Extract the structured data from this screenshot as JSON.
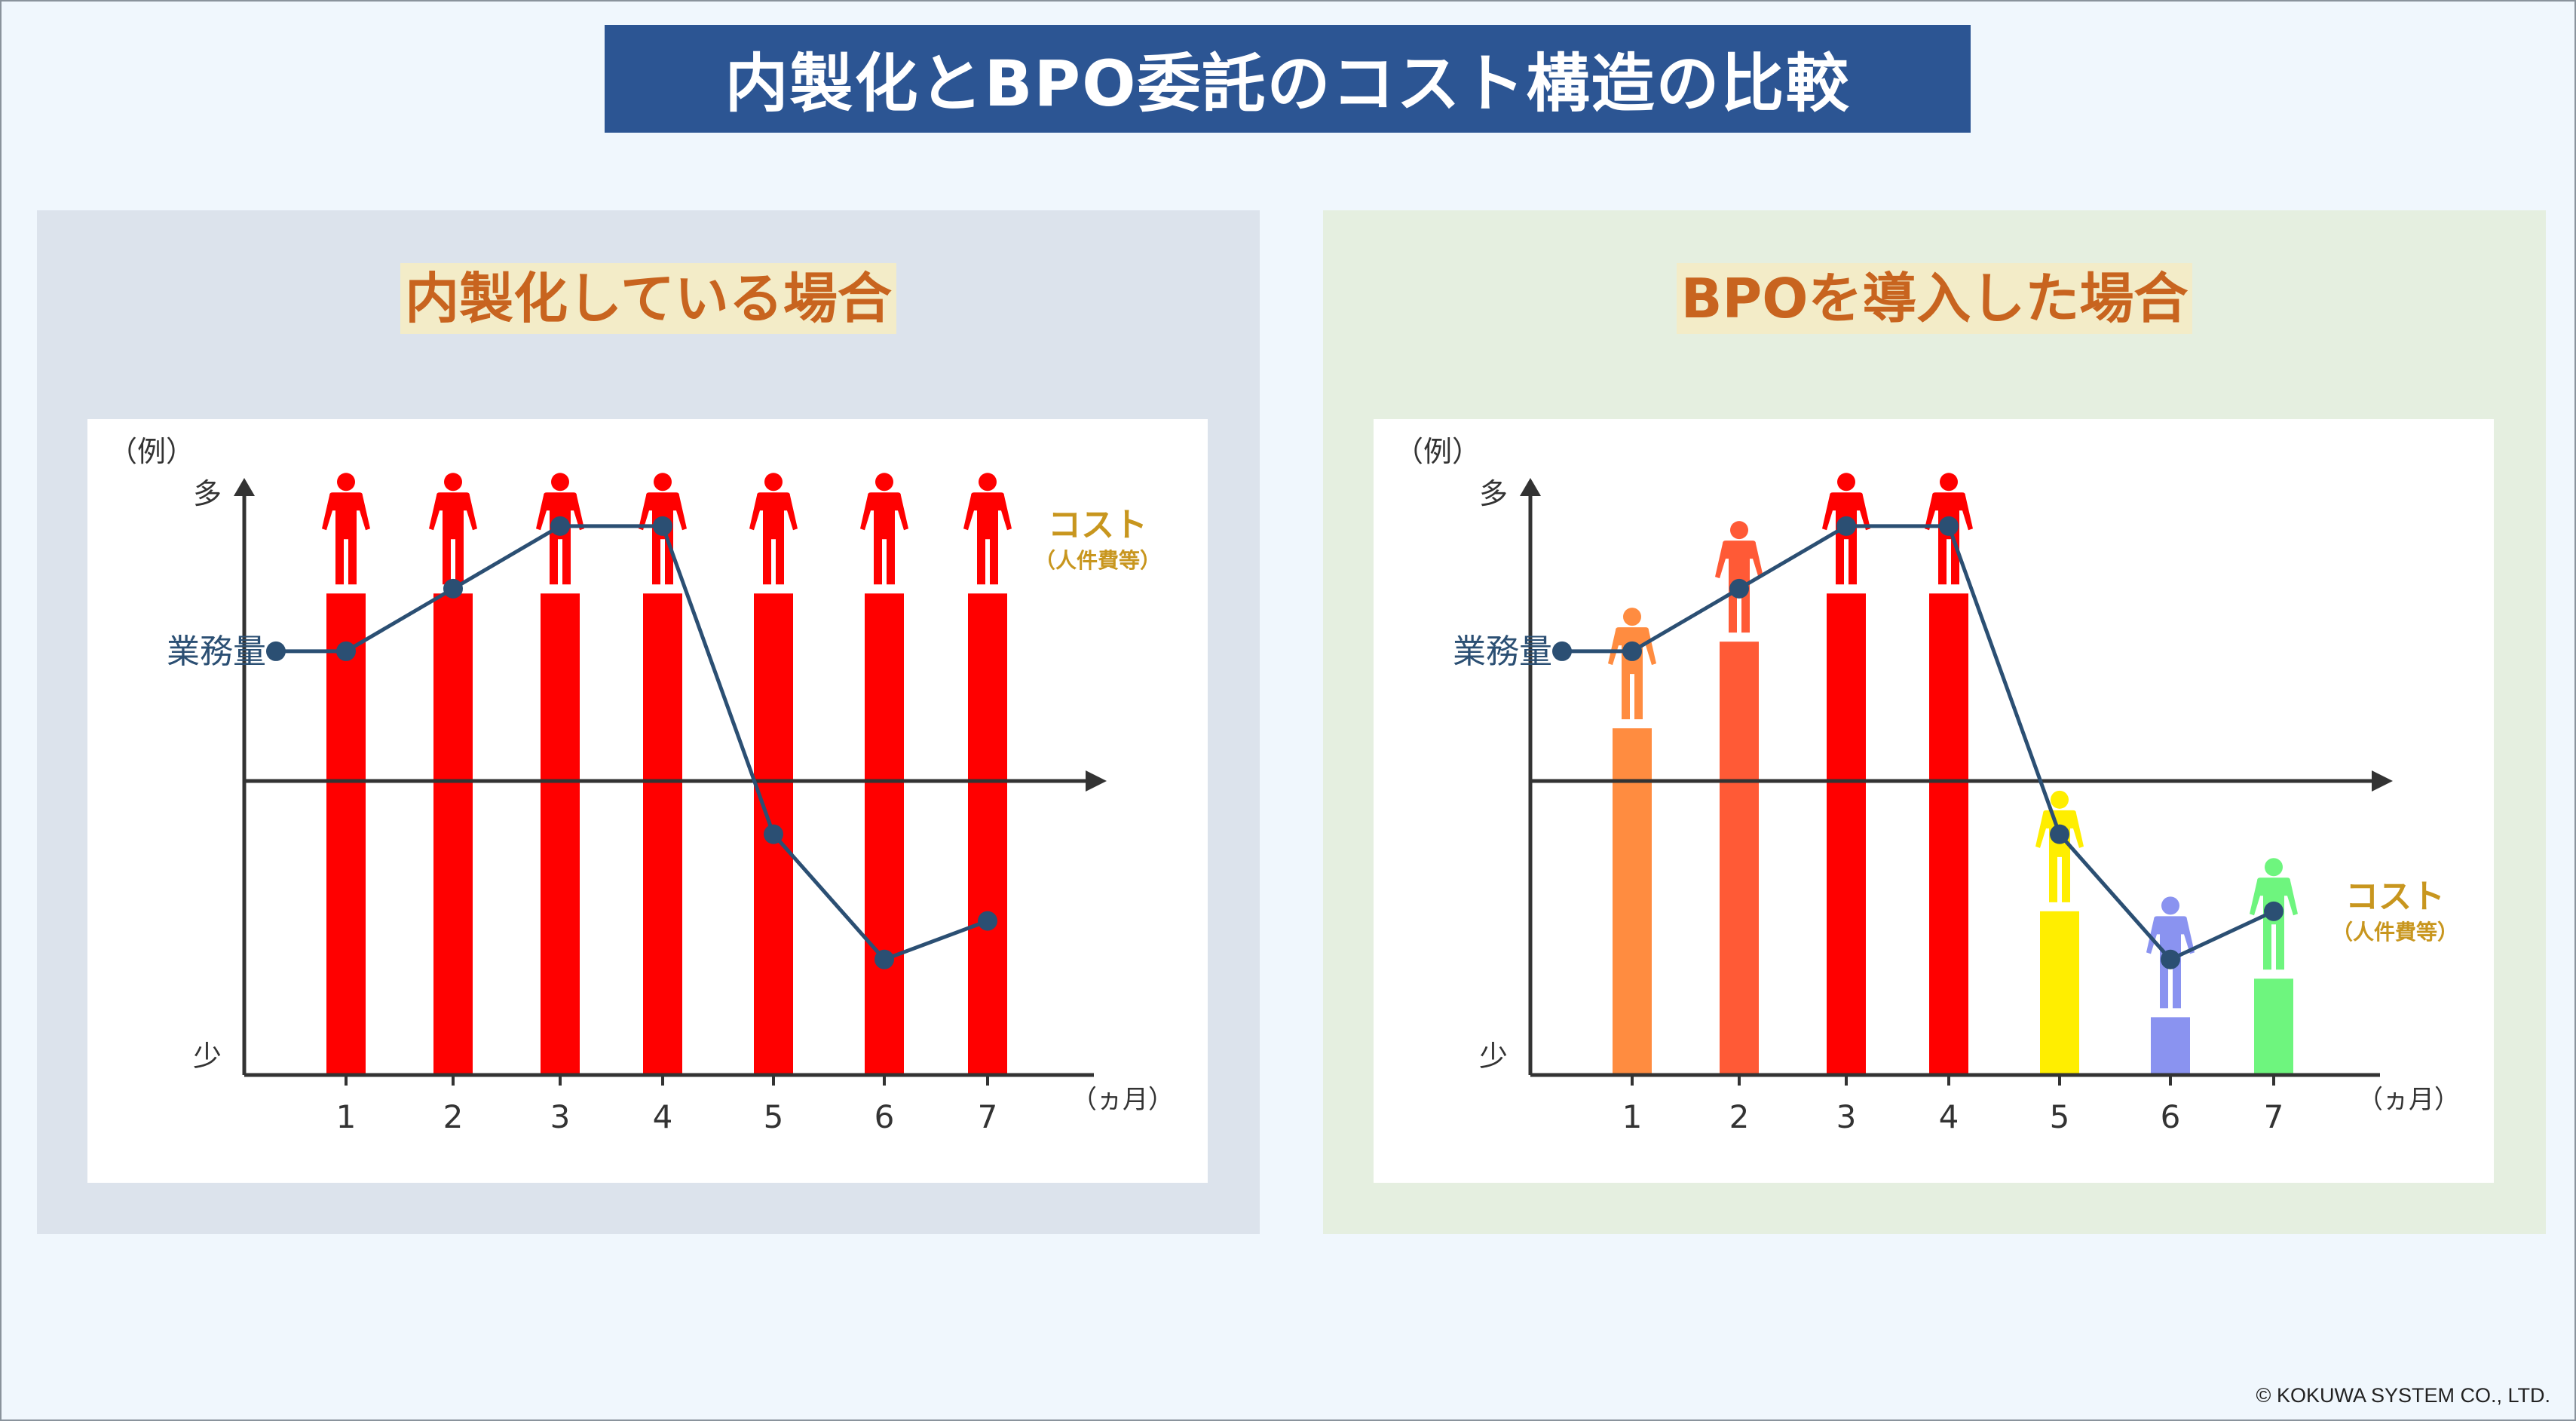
{
  "title": "内製化とBPO委託のコスト構造の比較",
  "copyright": "© KOKUWA SYSTEM CO., LTD.",
  "colors": {
    "title_bg": "#2c5593",
    "heading_text": "#c8641f",
    "line": "#2b4f73",
    "axis": "#333333"
  },
  "chart_data": [
    {
      "type": "bar",
      "title": "内製化している場合",
      "example_label": "（例）",
      "ylabel_top": "多",
      "ylabel_bottom": "少",
      "xunit": "（ヵ月）",
      "categories": [
        "1",
        "2",
        "3",
        "4",
        "5",
        "6",
        "7"
      ],
      "series": [
        {
          "name": "コスト",
          "label_sub": "（人件費等）",
          "values": [
            5,
            5,
            5,
            5,
            5,
            5,
            5
          ],
          "colors": [
            "#ff0000",
            "#ff0000",
            "#ff0000",
            "#ff0000",
            "#ff0000",
            "#ff0000",
            "#ff0000"
          ],
          "icon": "person-icon"
        },
        {
          "name": "業務量",
          "type": "line",
          "start_value": 4.4,
          "values": [
            4.4,
            5.05,
            5.7,
            5.7,
            2.5,
            1.2,
            1.6
          ]
        }
      ],
      "ylim": [
        0,
        6.2
      ],
      "grid": false,
      "legend": "right"
    },
    {
      "type": "bar",
      "title": "BPOを導入した場合",
      "example_label": "（例）",
      "ylabel_top": "多",
      "ylabel_bottom": "少",
      "xunit": "（ヵ月）",
      "categories": [
        "1",
        "2",
        "3",
        "4",
        "5",
        "6",
        "7"
      ],
      "series": [
        {
          "name": "コスト",
          "label_sub": "（人件費等）",
          "values": [
            3.6,
            4.5,
            5,
            5,
            1.7,
            0.6,
            1.0
          ],
          "colors": [
            "#ff8c40",
            "#ff5a36",
            "#ff0000",
            "#ff0000",
            "#ffee00",
            "#8a93f0",
            "#6ef57e"
          ],
          "icon": "person-icon"
        },
        {
          "name": "業務量",
          "type": "line",
          "start_value": 4.4,
          "values": [
            4.4,
            5.05,
            5.7,
            5.7,
            2.5,
            1.2,
            1.7
          ]
        }
      ],
      "ylim": [
        0,
        6.2
      ],
      "grid": false,
      "legend": "right"
    }
  ]
}
